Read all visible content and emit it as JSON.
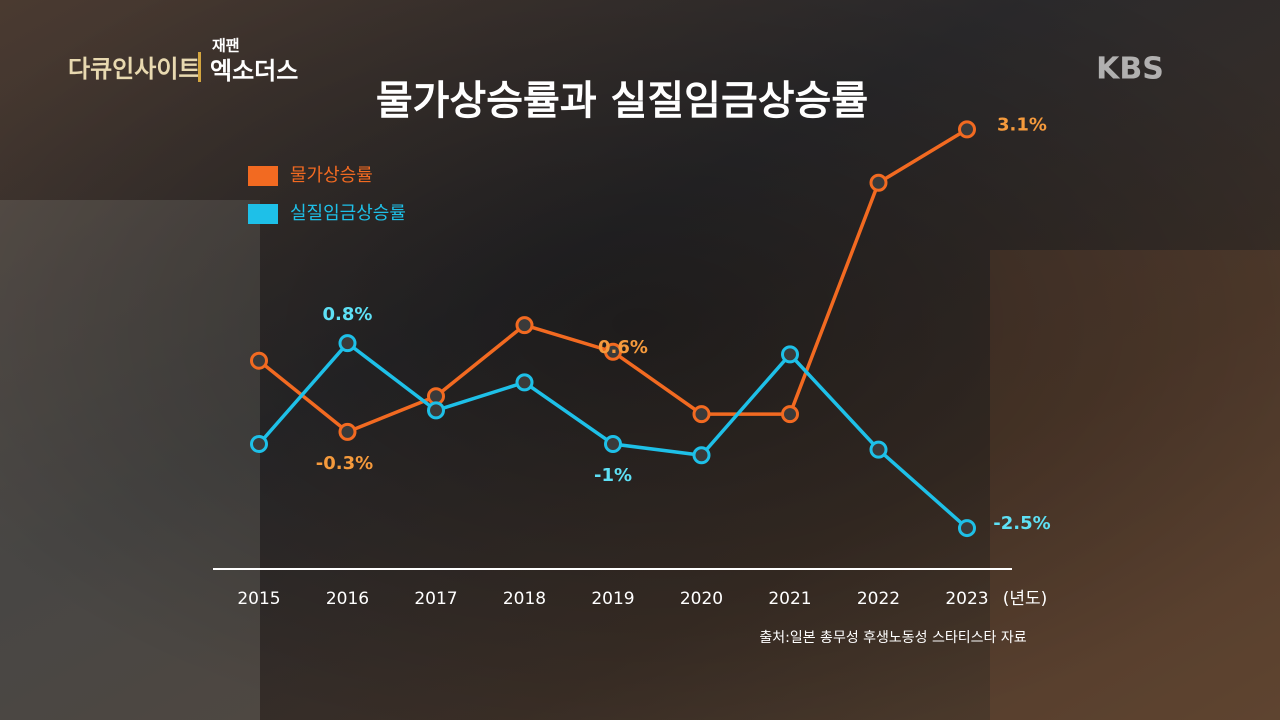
{
  "program": {
    "name": "다큐인사이트",
    "episode_top": "재팬",
    "episode": "엑소더스"
  },
  "broadcaster": "KBS",
  "chart_data": {
    "type": "line",
    "title": "물가상승률과 실질임금상승률",
    "x_unit": "(년도)",
    "source": "출처:일본 총무성 후생노동성 스타티스타 자료",
    "categories": [
      "2015",
      "2016",
      "2017",
      "2018",
      "2019",
      "2020",
      "2021",
      "2022",
      "2023"
    ],
    "ylim": [
      -1.74,
      3.43
    ],
    "y2lim": [
      -3.07,
      5.14
    ],
    "series": [
      {
        "name": "물가상승률",
        "color": "#f26a21",
        "values": [
          0.5,
          -0.3,
          0.1,
          0.9,
          0.6,
          -0.1,
          -0.1,
          2.5,
          3.1
        ],
        "value_labels": [
          null,
          "-0.3%",
          null,
          null,
          "0.6%",
          null,
          null,
          null,
          "3.1%"
        ],
        "label_color": "#f59a3c"
      },
      {
        "name": "실질임금상승률",
        "color": "#1ec0e8",
        "axis": "y2",
        "values": [
          -1.0,
          0.8,
          -0.4,
          0.1,
          -1,
          -1.2,
          0.6,
          -1.1,
          -2.5
        ],
        "value_labels": [
          null,
          "0.8%",
          null,
          null,
          "-1%",
          null,
          null,
          null,
          "-2.5%"
        ],
        "label_color": "#5ee0f5"
      }
    ]
  }
}
